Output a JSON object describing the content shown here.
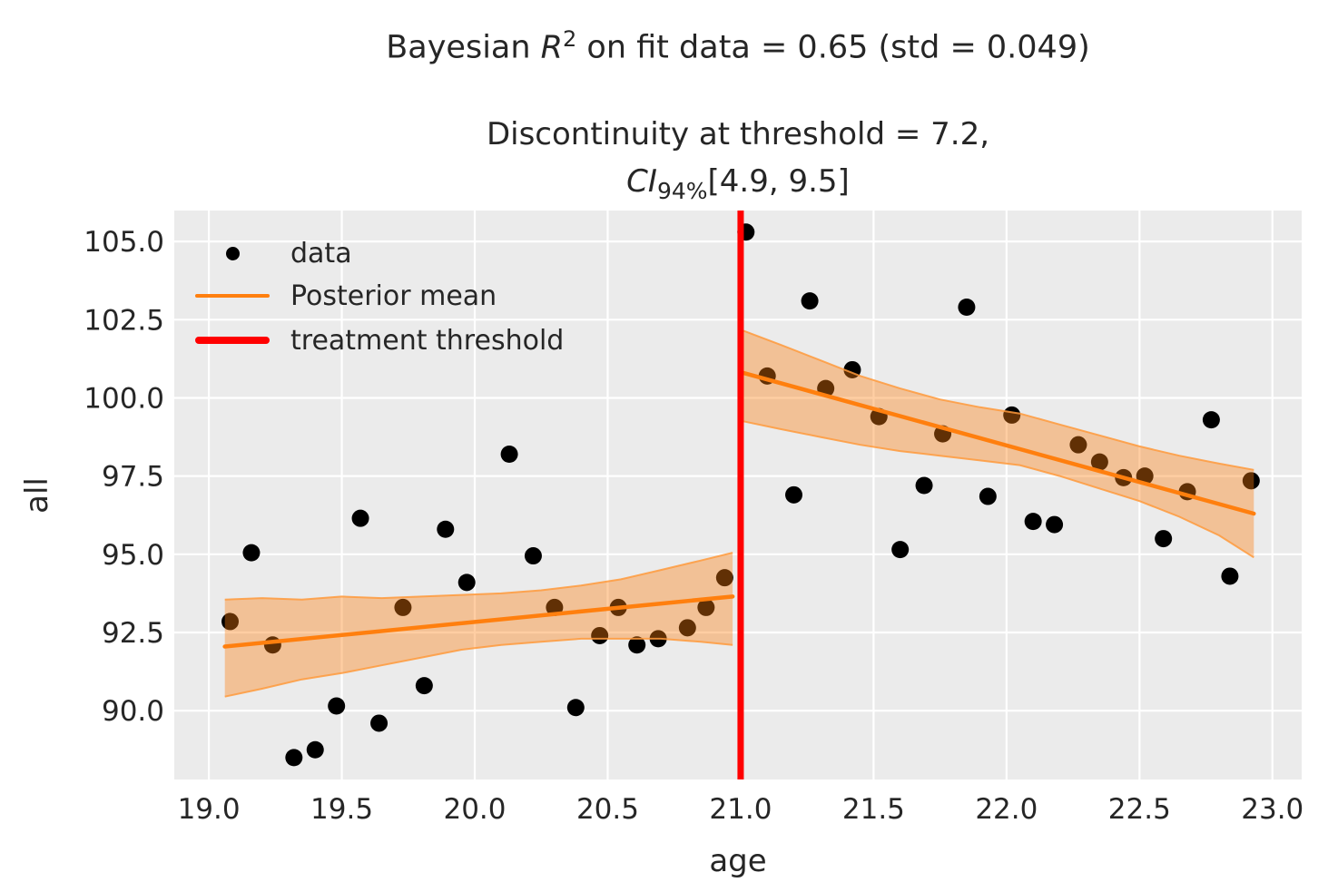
{
  "figure": {
    "bg": "#ffffff",
    "plot_bg": "#ebebeb",
    "grid_color": "#ffffff",
    "text_color": "#262626"
  },
  "title": {
    "part1": "Bayesian ",
    "r_symbol": "R",
    "r_exponent": "2",
    "part2": " on fit data = 0.65 (std = 0.049)"
  },
  "subtitle": {
    "line1": "Discontinuity at threshold = 7.2,",
    "ci_symbol": "CI",
    "ci_sub": "94%",
    "ci_interval": "[4.9, 9.5]"
  },
  "legend": {
    "items": [
      {
        "label": "data",
        "marker": "dot",
        "color": "#000000"
      },
      {
        "label": "Posterior mean",
        "marker": "line",
        "color": "#ff7f0e"
      },
      {
        "label": "treatment threshold",
        "marker": "thick-line",
        "color": "#ff0000"
      }
    ]
  },
  "axes": {
    "xlabel": "age",
    "ylabel": "all"
  },
  "chart_data": {
    "type": "scatter",
    "title": "Bayesian R^2 on fit data = 0.65 (std = 0.049)",
    "subtitle": "Discontinuity at threshold = 7.2, CI_94%[4.9, 9.5]",
    "xlabel": "age",
    "ylabel": "all",
    "xlim": [
      18.87,
      23.11
    ],
    "ylim": [
      87.8,
      105.99
    ],
    "x_ticks": [
      19.0,
      19.5,
      20.0,
      20.5,
      21.0,
      21.5,
      22.0,
      22.5,
      23.0
    ],
    "y_ticks": [
      90.0,
      92.5,
      95.0,
      97.5,
      100.0,
      102.5,
      105.0
    ],
    "grid": true,
    "legend_position": "upper left",
    "scatter": {
      "name": "data",
      "color": "#000000",
      "marker_radius": 9.5,
      "points": [
        [
          19.08,
          92.85
        ],
        [
          19.16,
          95.05
        ],
        [
          19.24,
          92.1
        ],
        [
          19.32,
          88.5
        ],
        [
          19.4,
          88.75
        ],
        [
          19.48,
          90.15
        ],
        [
          19.57,
          96.15
        ],
        [
          19.64,
          89.6
        ],
        [
          19.73,
          93.3
        ],
        [
          19.81,
          90.8
        ],
        [
          19.89,
          95.8
        ],
        [
          19.97,
          94.1
        ],
        [
          20.13,
          98.2
        ],
        [
          20.22,
          94.95
        ],
        [
          20.3,
          93.3
        ],
        [
          20.38,
          90.1
        ],
        [
          20.47,
          92.4
        ],
        [
          20.54,
          93.3
        ],
        [
          20.61,
          92.1
        ],
        [
          20.69,
          92.3
        ],
        [
          20.8,
          92.65
        ],
        [
          20.87,
          93.3
        ],
        [
          20.94,
          94.25
        ],
        [
          21.02,
          105.3
        ],
        [
          21.1,
          100.7
        ],
        [
          21.2,
          96.9
        ],
        [
          21.26,
          103.1
        ],
        [
          21.32,
          100.3
        ],
        [
          21.42,
          100.9
        ],
        [
          21.52,
          99.4
        ],
        [
          21.6,
          95.15
        ],
        [
          21.69,
          97.2
        ],
        [
          21.76,
          98.85
        ],
        [
          21.85,
          102.9
        ],
        [
          21.93,
          96.85
        ],
        [
          22.02,
          99.45
        ],
        [
          22.1,
          96.05
        ],
        [
          22.18,
          95.95
        ],
        [
          22.27,
          98.5
        ],
        [
          22.35,
          97.95
        ],
        [
          22.44,
          97.45
        ],
        [
          22.52,
          97.5
        ],
        [
          22.59,
          95.5
        ],
        [
          22.68,
          97.0
        ],
        [
          22.77,
          99.3
        ],
        [
          22.84,
          94.3
        ],
        [
          22.92,
          97.35
        ]
      ]
    },
    "posterior_mean": {
      "name": "Posterior mean",
      "color": "#ff7f0e",
      "width": 4.5,
      "segments": [
        [
          [
            19.06,
            92.05
          ],
          [
            20.97,
            93.65
          ]
        ],
        [
          [
            21.01,
            100.8
          ],
          [
            22.93,
            96.3
          ]
        ]
      ]
    },
    "hdi_band": {
      "name": "94% HDI",
      "color": "#ff7f0e",
      "fill_opacity": 0.38,
      "edge_color": "#ff9a3c",
      "segments": [
        {
          "x": [
            19.06,
            19.2,
            19.35,
            19.5,
            19.65,
            19.8,
            19.95,
            20.1,
            20.25,
            20.4,
            20.55,
            20.7,
            20.85,
            20.97
          ],
          "top": [
            93.55,
            93.6,
            93.55,
            93.65,
            93.6,
            93.65,
            93.7,
            93.75,
            93.85,
            94.0,
            94.2,
            94.5,
            94.8,
            95.05
          ],
          "bottom": [
            90.45,
            90.7,
            91.0,
            91.2,
            91.45,
            91.7,
            91.95,
            92.1,
            92.2,
            92.3,
            92.3,
            92.3,
            92.2,
            92.1
          ]
        },
        {
          "x": [
            21.01,
            21.15,
            21.3,
            21.45,
            21.6,
            21.75,
            21.9,
            22.05,
            22.2,
            22.35,
            22.5,
            22.65,
            22.8,
            22.93
          ],
          "top": [
            102.15,
            101.7,
            101.2,
            100.7,
            100.3,
            99.95,
            99.7,
            99.5,
            99.15,
            98.8,
            98.45,
            98.15,
            97.9,
            97.7
          ],
          "bottom": [
            99.25,
            99.0,
            98.75,
            98.5,
            98.3,
            98.15,
            98.0,
            97.85,
            97.5,
            97.1,
            96.7,
            96.2,
            95.6,
            94.9
          ]
        }
      ]
    },
    "threshold": {
      "name": "treatment threshold",
      "x": 21.0,
      "color": "#ff0000",
      "width": 7
    }
  }
}
